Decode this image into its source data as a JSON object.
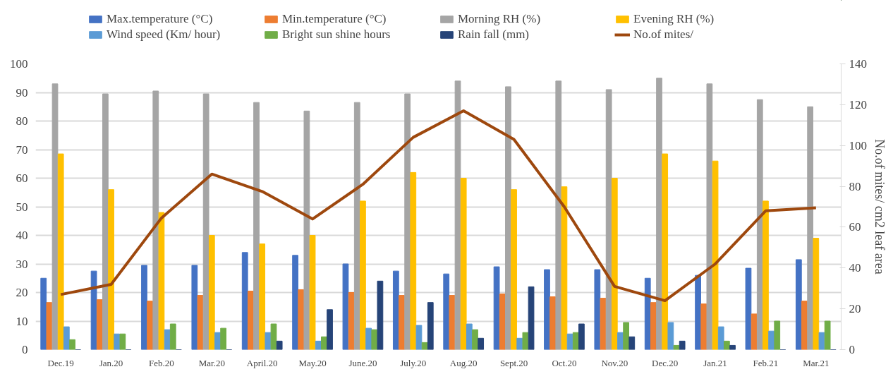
{
  "chart_data": {
    "type": "bar",
    "categories": [
      "Dec.19",
      "Jan.20",
      "Feb.20",
      "Mar.20",
      "April.20",
      "May.20",
      "June.20",
      "July.20",
      "Aug.20",
      "Sept.20",
      "Oct.20",
      "Nov.20",
      "Dec.20",
      "Jan.21",
      "Feb.21",
      "Mar.21"
    ],
    "series": [
      {
        "name": "Max.temperature (°C)",
        "color": "#4472c4",
        "values": [
          25,
          27.5,
          29.5,
          29.5,
          34,
          33,
          30,
          27.5,
          26.5,
          29,
          28,
          28,
          25,
          26,
          28.5,
          31.5
        ]
      },
      {
        "name": "Min.temperature (°C)",
        "color": "#ed7d31",
        "values": [
          16.5,
          17.5,
          17,
          19,
          20.5,
          21,
          20,
          19,
          19,
          19.5,
          18.5,
          18,
          16.5,
          16,
          12.5,
          17
        ]
      },
      {
        "name": "Morning RH (%)",
        "color": "#a5a5a5",
        "values": [
          93,
          89.5,
          90.5,
          89.5,
          86.5,
          83.5,
          86.5,
          89.5,
          94,
          92,
          94,
          91,
          95,
          93,
          87.5,
          85
        ]
      },
      {
        "name": "Evening RH (%)",
        "color": "#ffc000",
        "values": [
          68.5,
          56,
          48,
          40,
          37,
          40,
          52,
          62,
          60,
          56,
          57,
          60,
          68.5,
          66,
          52,
          39
        ]
      },
      {
        "name": "Wind speed (Km/ hour)",
        "color": "#5b9bd5",
        "values": [
          8,
          5.5,
          7,
          6,
          6,
          3,
          7.5,
          8.5,
          9,
          4,
          5.5,
          6,
          9.5,
          8,
          6.5,
          6
        ]
      },
      {
        "name": "Bright sun shine hours",
        "color": "#70ad47",
        "values": [
          3.5,
          5.5,
          9,
          7.5,
          9,
          4.5,
          7,
          2.5,
          7,
          6,
          6,
          9.5,
          1.5,
          3,
          10,
          10
        ]
      },
      {
        "name": "Rain fall (mm)",
        "color": "#264478",
        "values": [
          0,
          0,
          0,
          0,
          3,
          14,
          24,
          16.5,
          4,
          22,
          9,
          4.5,
          3,
          1.5,
          0,
          0
        ]
      },
      {
        "name": "No.of mites/",
        "color": "#9e480e",
        "type": "line",
        "axis": "y2",
        "values": [
          27,
          32,
          64.5,
          86,
          77.5,
          64,
          81,
          104,
          117,
          103,
          70,
          31,
          24,
          42,
          68,
          69.5
        ]
      }
    ],
    "ylim": [
      0,
      100
    ],
    "yticks": [
      0,
      10,
      20,
      30,
      40,
      50,
      60,
      70,
      80,
      90,
      100
    ],
    "y2lim": [
      0,
      140
    ],
    "y2ticks": [
      0,
      20,
      40,
      60,
      80,
      100,
      120,
      140
    ],
    "y2label": "No.of mites/ cm2 leaf area",
    "grid": "y",
    "legend": "top"
  }
}
